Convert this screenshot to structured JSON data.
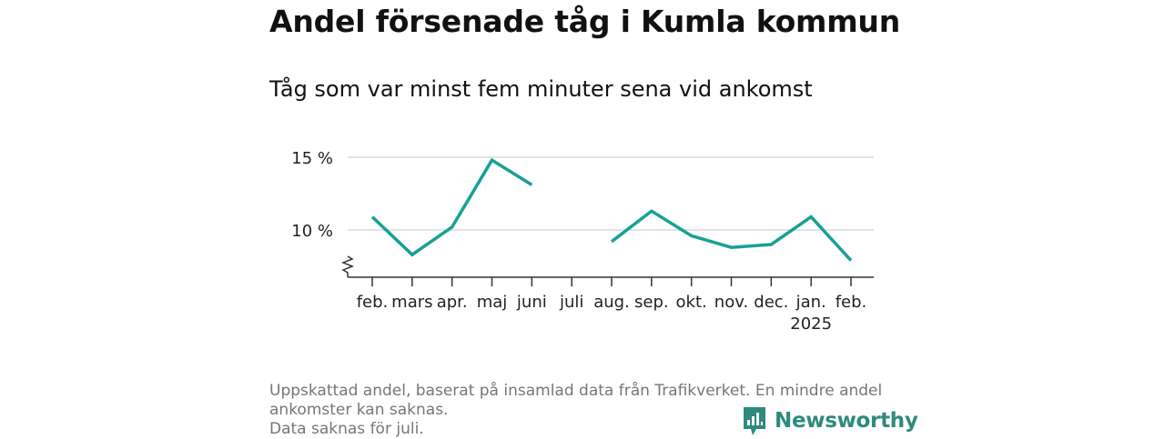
{
  "title": "Andel försenade tåg i Kumla kommun",
  "subtitle": "Tåg som var minst fem minuter sena vid ankomst",
  "footnote": {
    "line1": "Uppskattad andel, baserat på insamlad data från Trafikverket. En mindre andel",
    "line2": "ankomster kan saknas.",
    "line3": "Data saknas för juli."
  },
  "brand": "Newsworthy",
  "colors": {
    "line": "#17a096",
    "grid": "#d9d9d9",
    "axis": "#333333",
    "brand": "#2e8a7f"
  },
  "chart_data": {
    "type": "line",
    "categories": [
      "feb.",
      "mars",
      "apr.",
      "maj",
      "juni",
      "juli",
      "aug.",
      "sep.",
      "okt.",
      "nov.",
      "dec.",
      "jan.",
      "feb."
    ],
    "year_label": "2025",
    "year_label_category": "jan.",
    "values": [
      10.9,
      8.3,
      10.2,
      14.8,
      13.1,
      null,
      9.2,
      11.3,
      9.6,
      8.8,
      9.0,
      10.9,
      7.9
    ],
    "yticks": [
      10,
      15
    ],
    "ytick_labels": [
      "10 %",
      "15 %"
    ],
    "ylim": [
      6.8,
      15.2
    ],
    "axis_break": true,
    "gap": "juli"
  }
}
